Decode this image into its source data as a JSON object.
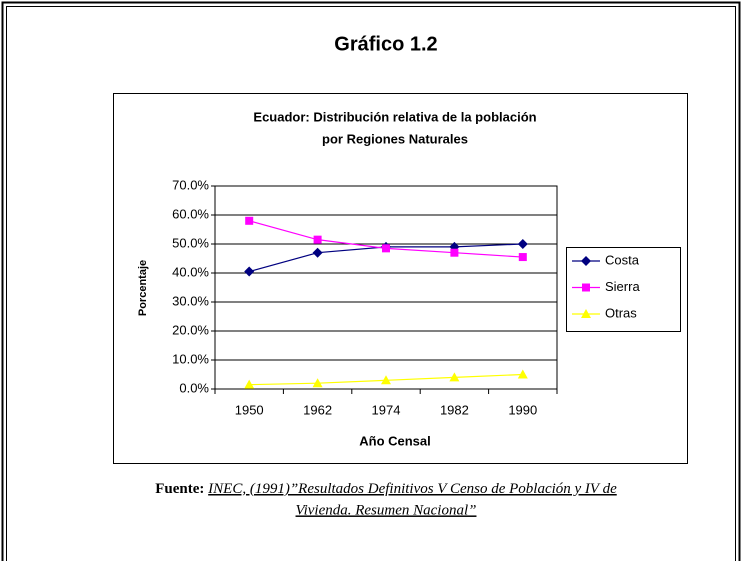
{
  "heading": "Gráfico 1.2",
  "chart_data": {
    "type": "line",
    "title": [
      "Ecuador: Distribución relativa de la población",
      "por Regiones Naturales"
    ],
    "x_label": "Año Censal",
    "y_label": "Porcentaje",
    "categories": [
      "1950",
      "1962",
      "1974",
      "1982",
      "1990"
    ],
    "series": [
      {
        "name": "Costa",
        "color": "#000080",
        "marker": "diamond",
        "values": [
          40.5,
          47,
          49,
          49,
          50
        ]
      },
      {
        "name": "Sierra",
        "color": "#ff00ff",
        "marker": "square",
        "values": [
          58,
          51.5,
          48.5,
          47,
          45.5
        ]
      },
      {
        "name": "Otras",
        "color": "#ffff00",
        "marker": "triangle",
        "values": [
          1.5,
          2,
          3,
          4,
          5
        ]
      }
    ],
    "ylim": [
      0,
      70
    ],
    "yticks": [
      {
        "value": 0,
        "label": "0.0%"
      },
      {
        "value": 10,
        "label": "10.0%"
      },
      {
        "value": 20,
        "label": "20.0%"
      },
      {
        "value": 30,
        "label": "30.0%"
      },
      {
        "value": 40,
        "label": "40.0%"
      },
      {
        "value": 50,
        "label": "50.0%"
      },
      {
        "value": 60,
        "label": "60.0%"
      },
      {
        "value": 70,
        "label": "70.0%"
      }
    ],
    "grid": true,
    "legend": "right"
  },
  "source_label": "Fuente:",
  "source_text": [
    "INEC, (1991)”Resultados Definitivos V Censo de Población y IV de",
    "Vivienda.  Resumen Nacional”"
  ]
}
